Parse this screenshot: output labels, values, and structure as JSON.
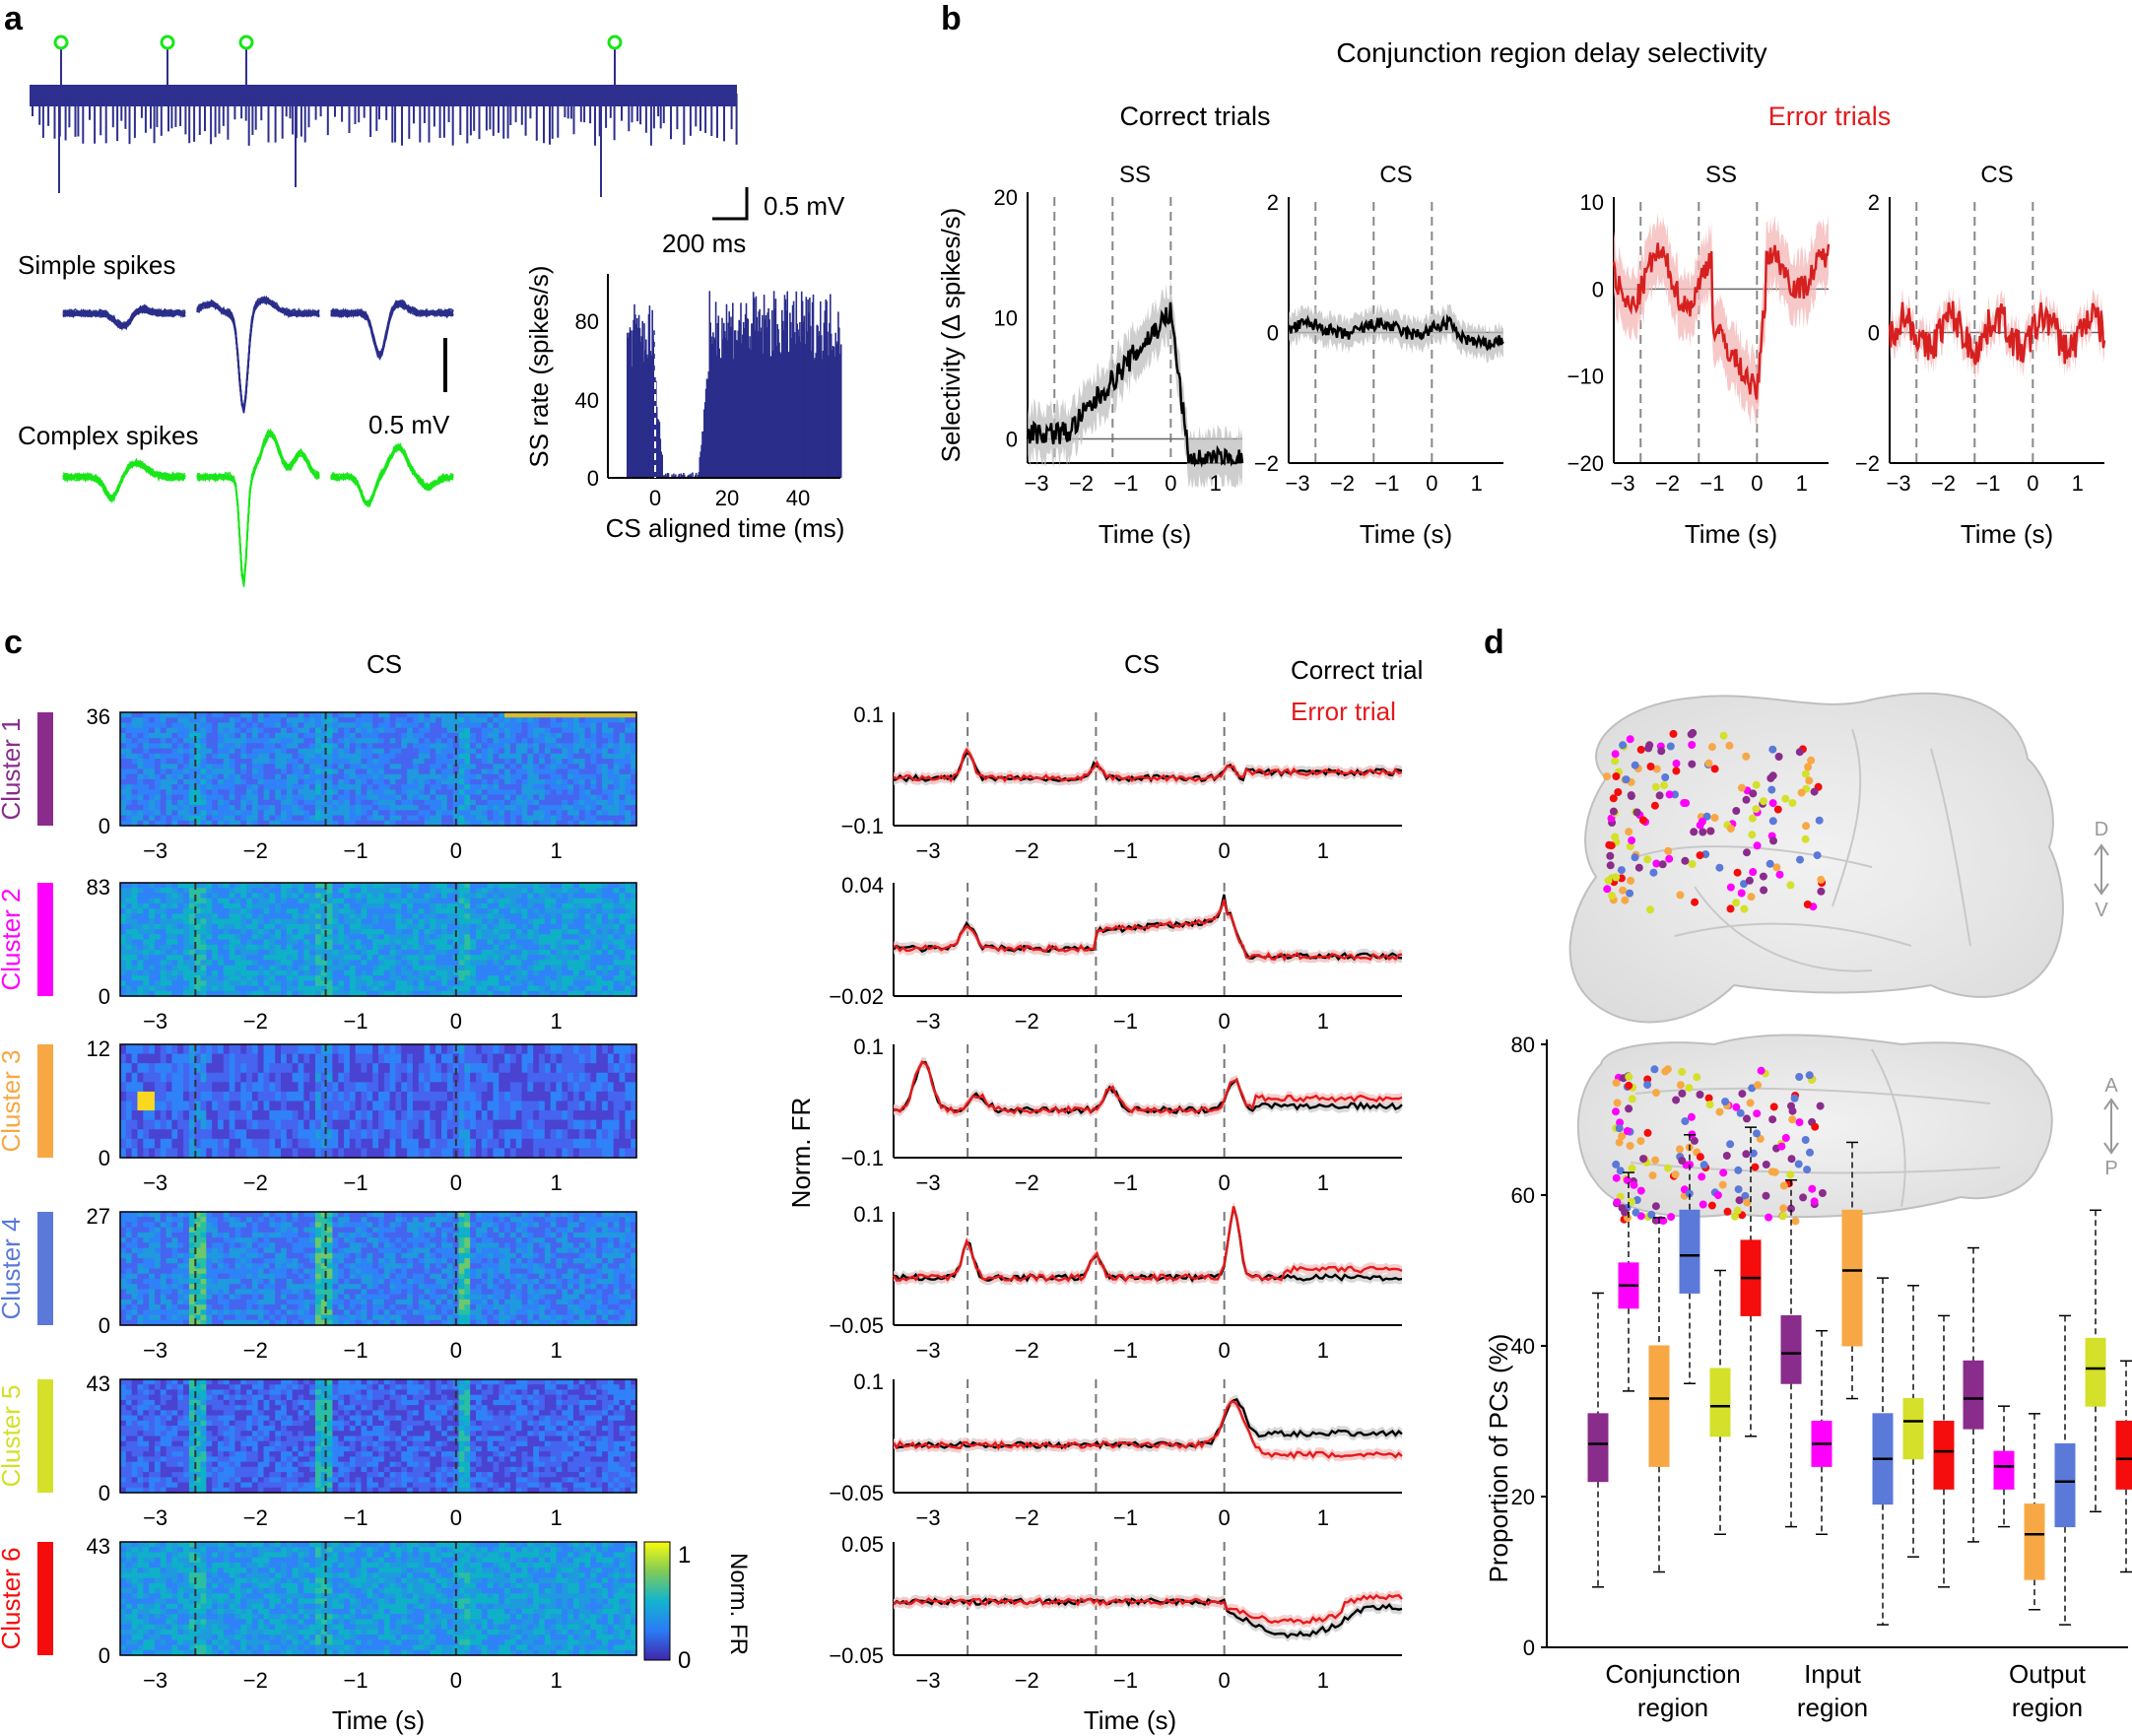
{
  "colors": {
    "trace_blue": "#2e2f8e",
    "ss_blue": "#2a2d8a",
    "cs_green": "#19e619",
    "error_red": "#e31a1c",
    "correct_black": "#000000",
    "grey_band": "#bdbdbd",
    "pink_band": "#f4b6b6",
    "clusters": [
      "#8a2c8c",
      "#ff00ff",
      "#f7a845",
      "#5b79d8",
      "#d4e02a",
      "#f50c0c"
    ]
  },
  "panel_a": {
    "letter": "a",
    "scale_mv": "0.5 mV",
    "scale_ms": "200 ms",
    "simple_label": "Simple spikes",
    "complex_label": "Complex spikes",
    "wave_scale": "0.5 mV",
    "hist": {
      "ylabel": "SS rate (spikes/s)",
      "xlabel": "CS aligned time (ms)",
      "yticks": [
        "0",
        "40",
        "80"
      ],
      "xticks": [
        "0",
        "20",
        "40"
      ]
    }
  },
  "panel_b": {
    "letter": "b",
    "title": "Conjunction region delay selectivity",
    "correct_title": "Correct trials",
    "error_title": "Error trials",
    "ylabel": "Selectivity (Δ spikes/s)",
    "xlabel": "Time (s)",
    "subplots": [
      {
        "name": "SS",
        "yticks": [
          "20",
          "10",
          "0"
        ],
        "xticks": [
          "−3",
          "−2",
          "−1",
          "0",
          "1"
        ]
      },
      {
        "name": "CS",
        "yticks": [
          "2",
          "0",
          "−2"
        ],
        "xticks": [
          "−3",
          "−2",
          "−1",
          "0",
          "1"
        ]
      },
      {
        "name": "SS",
        "yticks": [
          "10",
          "0",
          "−10",
          "−20"
        ],
        "xticks": [
          "−3",
          "−2",
          "−1",
          "0",
          "1"
        ]
      },
      {
        "name": "CS",
        "yticks": [
          "2",
          "0",
          "−2"
        ],
        "xticks": [
          "−3",
          "−2",
          "−1",
          "0",
          "1"
        ]
      }
    ]
  },
  "panel_c": {
    "letter": "c",
    "heat_title": "CS",
    "trace_title": "CS",
    "legend_correct": "Correct trial",
    "legend_error": "Error trial",
    "xlabel": "Time (s)",
    "ylabel_right": "Norm. FR",
    "xticks": [
      "−3",
      "−2",
      "−1",
      "0",
      "1"
    ],
    "colorbar_label": "Norm. FR",
    "colorbar_ticks": [
      "1",
      "0"
    ],
    "clusters": [
      {
        "label": "Cluster 1",
        "n": "36",
        "zero": "0",
        "yticks": [
          "0.1",
          "−0.1"
        ]
      },
      {
        "label": "Cluster 2",
        "n": "83",
        "zero": "0",
        "yticks": [
          "0.04",
          "−0.02"
        ]
      },
      {
        "label": "Cluster 3",
        "n": "12",
        "zero": "0",
        "yticks": [
          "0.1",
          "−0.1"
        ]
      },
      {
        "label": "Cluster 4",
        "n": "27",
        "zero": "0",
        "yticks": [
          "0.1",
          "−0.05"
        ]
      },
      {
        "label": "Cluster 5",
        "n": "43",
        "zero": "0",
        "yticks": [
          "0.1",
          "−0.05"
        ]
      },
      {
        "label": "Cluster 6",
        "n": "43",
        "zero": "0",
        "yticks": [
          "0.05",
          "−0.05"
        ]
      }
    ]
  },
  "panel_d": {
    "letter": "d",
    "dv_top": "D",
    "dv_bottom": "V",
    "ap_top": "A",
    "ap_bottom": "P"
  },
  "chart_data": {
    "type": "box",
    "title": "",
    "ylabel": "Proportion of PCs (%)",
    "ylim": [
      0,
      80
    ],
    "yticks": [
      "0",
      "20",
      "40",
      "60",
      "80"
    ],
    "groups": [
      "Conjunction region",
      "Input region",
      "Output region"
    ],
    "group_labels": [
      [
        "Conjunction",
        "region"
      ],
      [
        "Input",
        "region"
      ],
      [
        "Output",
        "region"
      ]
    ],
    "series": [
      {
        "name": "Cluster 1",
        "color": "#8a2c8c",
        "boxes": [
          {
            "min": 8,
            "q1": 22,
            "median": 27,
            "q3": 31,
            "max": 47
          },
          {
            "min": 16,
            "q1": 35,
            "median": 39,
            "q3": 44,
            "max": 62
          },
          {
            "min": 14,
            "q1": 29,
            "median": 33,
            "q3": 38,
            "max": 53
          }
        ]
      },
      {
        "name": "Cluster 2",
        "color": "#ff00ff",
        "boxes": [
          {
            "min": 34,
            "q1": 45,
            "median": 48,
            "q3": 51,
            "max": 63
          },
          {
            "min": 15,
            "q1": 24,
            "median": 27,
            "q3": 30,
            "max": 42
          },
          {
            "min": 16,
            "q1": 21,
            "median": 24,
            "q3": 26,
            "max": 32
          }
        ]
      },
      {
        "name": "Cluster 3",
        "color": "#f7a845",
        "boxes": [
          {
            "min": 10,
            "q1": 24,
            "median": 33,
            "q3": 40,
            "max": 57
          },
          {
            "min": 33,
            "q1": 40,
            "median": 50,
            "q3": 58,
            "max": 67
          },
          {
            "min": 5,
            "q1": 9,
            "median": 15,
            "q3": 19,
            "max": 31
          }
        ]
      },
      {
        "name": "Cluster 4",
        "color": "#5b79d8",
        "boxes": [
          {
            "min": 35,
            "q1": 47,
            "median": 52,
            "q3": 58,
            "max": 68
          },
          {
            "min": 3,
            "q1": 19,
            "median": 25,
            "q3": 31,
            "max": 49
          },
          {
            "min": 3,
            "q1": 16,
            "median": 22,
            "q3": 27,
            "max": 44
          }
        ]
      },
      {
        "name": "Cluster 5",
        "color": "#d4e02a",
        "boxes": [
          {
            "min": 15,
            "q1": 28,
            "median": 32,
            "q3": 37,
            "max": 50
          },
          {
            "min": 12,
            "q1": 25,
            "median": 30,
            "q3": 33,
            "max": 48
          },
          {
            "min": 18,
            "q1": 32,
            "median": 37,
            "q3": 41,
            "max": 58
          }
        ]
      },
      {
        "name": "Cluster 6",
        "color": "#f50c0c",
        "boxes": [
          {
            "min": 28,
            "q1": 44,
            "median": 49,
            "q3": 54,
            "max": 69
          },
          {
            "min": 8,
            "q1": 21,
            "median": 26,
            "q3": 30,
            "max": 44
          },
          {
            "min": 10,
            "q1": 21,
            "median": 25,
            "q3": 30,
            "max": 38
          }
        ]
      }
    ]
  }
}
